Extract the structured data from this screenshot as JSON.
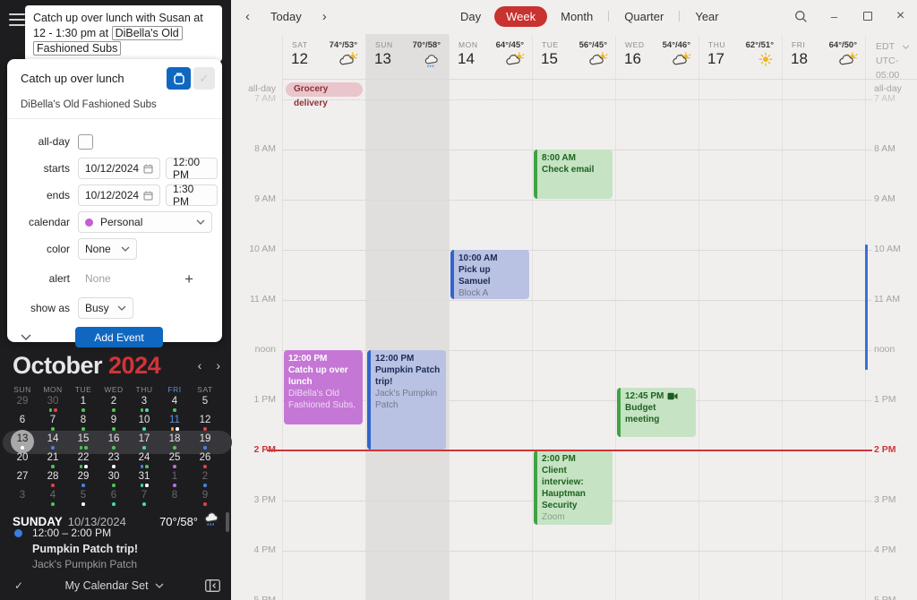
{
  "glyphs": {
    "check": "✓",
    "minimize": "–",
    "close": "×",
    "chev_left": "‹",
    "chev_right": "›",
    "plus": "+"
  },
  "sidebar": {
    "nl_input": {
      "prefix": "Catch up over lunch with Susan at 12 - 1:30 pm at ",
      "highlighted": "DiBella's Old Fashioned Subs"
    },
    "editor": {
      "title": "Catch up over lunch",
      "location": "DiBella's Old Fashioned Subs",
      "allday_label": "all-day",
      "starts_label": "starts",
      "starts_date": "10/12/2024",
      "starts_time": "12:00 PM",
      "ends_label": "ends",
      "ends_date": "10/12/2024",
      "ends_time": "1:30 PM",
      "calendar_label": "calendar",
      "calendar_value": "Personal",
      "calendar_dot_color": "#c45ed1",
      "color_label": "color",
      "color_value": "None",
      "alert_label": "alert",
      "alert_value": "None",
      "showas_label": "show as",
      "showas_value": "Busy",
      "add_button": "Add Event"
    },
    "mini_calendar": {
      "month": "October",
      "year": "2024",
      "weekdays": [
        "SUN",
        "MON",
        "TUE",
        "WED",
        "THU",
        "FRI",
        "SAT"
      ],
      "blue_weekday": "FRI",
      "dot_colors": {
        "green": "#4dc453",
        "red": "#e04343",
        "blue": "#4b80e0",
        "teal": "#45d6b8",
        "white": "#ffffff",
        "purple": "#c268e0",
        "orange": "#e8a23c"
      },
      "weeks": [
        {
          "sel": false,
          "days": [
            {
              "n": "29",
              "dim": true,
              "dots": []
            },
            {
              "n": "30",
              "dim": true,
              "dots": [
                "green",
                "red"
              ]
            },
            {
              "n": "1",
              "dots": [
                "green"
              ]
            },
            {
              "n": "2",
              "dots": [
                "green"
              ]
            },
            {
              "n": "3",
              "dots": [
                "green",
                "teal"
              ]
            },
            {
              "n": "4",
              "dots": [
                "green"
              ]
            },
            {
              "n": "5",
              "dots": []
            }
          ]
        },
        {
          "sel": false,
          "days": [
            {
              "n": "6",
              "dots": []
            },
            {
              "n": "7",
              "dots": [
                "green"
              ]
            },
            {
              "n": "8",
              "dots": [
                "green"
              ]
            },
            {
              "n": "9",
              "dots": [
                "green"
              ]
            },
            {
              "n": "10",
              "dots": [
                "teal"
              ]
            },
            {
              "n": "11",
              "blue": true,
              "dots": [
                "orange",
                "white"
              ]
            },
            {
              "n": "12",
              "dots": [
                "red"
              ]
            }
          ]
        },
        {
          "sel": true,
          "days": [
            {
              "n": "13",
              "circ": true,
              "dots": [
                "white"
              ]
            },
            {
              "n": "14",
              "dots": [
                "blue"
              ]
            },
            {
              "n": "15",
              "dots": [
                "green",
                "green"
              ]
            },
            {
              "n": "16",
              "dots": [
                "green"
              ]
            },
            {
              "n": "17",
              "dots": [
                "teal"
              ]
            },
            {
              "n": "18",
              "dots": [
                "green"
              ]
            },
            {
              "n": "19",
              "dots": [
                "blue"
              ]
            }
          ]
        },
        {
          "sel": false,
          "days": [
            {
              "n": "20",
              "dots": []
            },
            {
              "n": "21",
              "dots": [
                "green"
              ]
            },
            {
              "n": "22",
              "dots": [
                "green",
                "white"
              ]
            },
            {
              "n": "23",
              "dots": [
                "white"
              ]
            },
            {
              "n": "24",
              "dots": [
                "blue",
                "green"
              ]
            },
            {
              "n": "25",
              "dots": [
                "purple"
              ]
            },
            {
              "n": "26",
              "dots": [
                "red"
              ]
            }
          ]
        },
        {
          "sel": false,
          "days": [
            {
              "n": "27",
              "dots": []
            },
            {
              "n": "28",
              "dots": [
                "red"
              ]
            },
            {
              "n": "29",
              "dots": [
                "blue"
              ]
            },
            {
              "n": "30",
              "dots": [
                "green"
              ]
            },
            {
              "n": "31",
              "dots": [
                "teal",
                "white"
              ]
            },
            {
              "n": "1",
              "dim": true,
              "dots": [
                "purple"
              ]
            },
            {
              "n": "2",
              "dim": true,
              "dots": [
                "blue"
              ]
            }
          ]
        },
        {
          "sel": false,
          "days": [
            {
              "n": "3",
              "dim": true,
              "dots": []
            },
            {
              "n": "4",
              "dim": true,
              "dots": [
                "green"
              ]
            },
            {
              "n": "5",
              "dim": true,
              "dots": [
                "white"
              ]
            },
            {
              "n": "6",
              "dim": true,
              "dots": [
                "teal"
              ]
            },
            {
              "n": "7",
              "dim": true,
              "dots": [
                "teal"
              ]
            },
            {
              "n": "8",
              "dim": true,
              "dots": []
            },
            {
              "n": "9",
              "dim": true,
              "dots": [
                "red"
              ]
            }
          ]
        }
      ]
    },
    "selected_day": {
      "weekday": "SUNDAY",
      "date": "10/13/2024",
      "temp": "70°/58°",
      "weather": "rain"
    },
    "agenda": [
      {
        "time": "12:00 – 2:00 PM",
        "title": "Pumpkin Patch trip!",
        "location": "Jack's Pumpkin Patch",
        "dot_color": "#3b7de0"
      }
    ],
    "footer_label": "My Calendar Set"
  },
  "toolbar": {
    "today": "Today",
    "views": [
      "Day",
      "Week",
      "Month",
      "Quarter",
      "Year"
    ],
    "active_view": "Week"
  },
  "week": {
    "timezone": {
      "abbr": "EDT",
      "utc": "UTC-05:00"
    },
    "allday_label": "all-day",
    "days": [
      {
        "name": "SAT",
        "num": "12",
        "temp": "74°/53°",
        "weather": "partly-sunny",
        "today": false
      },
      {
        "name": "SUN",
        "num": "13",
        "temp": "70°/58°",
        "weather": "rain",
        "today": true
      },
      {
        "name": "MON",
        "num": "14",
        "temp": "64°/45°",
        "weather": "partly-sunny",
        "today": false
      },
      {
        "name": "TUE",
        "num": "15",
        "temp": "56°/45°",
        "weather": "partly-sunny",
        "today": false
      },
      {
        "name": "WED",
        "num": "16",
        "temp": "54°/46°",
        "weather": "partly-sunny",
        "today": false
      },
      {
        "name": "THU",
        "num": "17",
        "temp": "62°/51°",
        "weather": "sunny",
        "today": false
      },
      {
        "name": "FRI",
        "num": "18",
        "temp": "64°/50°",
        "weather": "partly-sunny",
        "today": false
      }
    ],
    "hours": [
      "7 AM",
      "8 AM",
      "9 AM",
      "10 AM",
      "11 AM",
      "noon",
      "1 PM",
      "2 PM",
      "3 PM",
      "4 PM",
      "5 PM"
    ],
    "now_label": "2 PM",
    "now_value": 14.0,
    "allday_events": [
      {
        "day": 0,
        "title": "Grocery delivery"
      }
    ],
    "events": [
      {
        "day": 0,
        "start": 12,
        "end": 13.5,
        "time": "12:00 PM",
        "title": "Catch up over lunch",
        "location": "DiBella's Old Fashioned Subs,",
        "style": "purple",
        "video": false
      },
      {
        "day": 1,
        "start": 12,
        "end": 14,
        "time": "12:00 PM",
        "title": "Pumpkin Patch trip!",
        "location": "Jack's Pumpkin Patch",
        "style": "blue",
        "video": false
      },
      {
        "day": 2,
        "start": 10,
        "end": 11,
        "time": "10:00 AM",
        "title": "Pick up Samuel",
        "location": "Block A",
        "style": "blue",
        "video": false
      },
      {
        "day": 3,
        "start": 8,
        "end": 9,
        "time": "8:00 AM",
        "title": "Check email",
        "location": "",
        "style": "green",
        "video": false
      },
      {
        "day": 4,
        "start": 12.75,
        "end": 13.75,
        "time": "12:45 PM",
        "title": "Budget meeting",
        "location": "",
        "style": "green",
        "video": true
      },
      {
        "day": 3,
        "start": 14,
        "end": 15.5,
        "time": "2:00 PM",
        "title": "Client interview: Hauptman Security",
        "location": "Zoom",
        "style": "green",
        "video": false
      }
    ],
    "range_indicator": {
      "start": 9.9,
      "end": 12.4
    }
  }
}
